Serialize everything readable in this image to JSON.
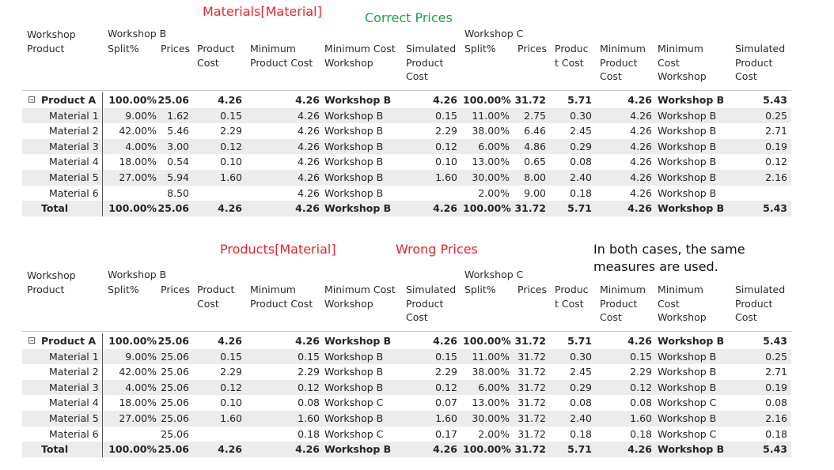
{
  "annotations": {
    "top_source": "Materials[Material]",
    "top_status": "Correct Prices",
    "bottom_source": "Products[Material]",
    "bottom_status": "Wrong Prices",
    "note_line1": "In both cases, the same",
    "note_line2": "measures are used."
  },
  "headers": {
    "row_header": [
      "Workshop",
      "Product"
    ],
    "workshop_b": "Workshop B",
    "workshop_c": "Workshop C",
    "split": "Split%",
    "prices": "Prices",
    "product_cost": [
      "Product",
      "Cost"
    ],
    "product_cost_c": [
      "Produc",
      "t Cost"
    ],
    "min_product_cost": [
      "Minimum",
      "Product Cost"
    ],
    "min_cost_workshop": [
      "Minimum Cost",
      "Workshop"
    ],
    "sim_product_cost": [
      "Simulated",
      "Product",
      "Cost"
    ],
    "min_product_cost_c": [
      "Minimum",
      "Product",
      "Cost"
    ],
    "min_cost_workshop_c": [
      "Minimum",
      "Cost",
      "Workshop"
    ],
    "sim_product_cost_c": [
      "Simulated",
      "Product",
      "Cost"
    ]
  },
  "top_table": {
    "rows": [
      {
        "label": "Product A",
        "split_b": "100.00%",
        "prices_b": "25.06",
        "pc_b": "4.26",
        "mpc_b": "4.26",
        "mcw_b": "Workshop B",
        "spc_b": "4.26",
        "split_c": "100.00%",
        "prices_c": "31.72",
        "pc_c": "5.71",
        "mpc_c": "4.26",
        "mcw_c": "Workshop B",
        "spc_c": "5.43"
      },
      {
        "label": "Material 1",
        "split_b": "9.00%",
        "prices_b": "1.62",
        "pc_b": "0.15",
        "mpc_b": "4.26",
        "mcw_b": "Workshop B",
        "spc_b": "0.15",
        "split_c": "11.00%",
        "prices_c": "2.75",
        "pc_c": "0.30",
        "mpc_c": "4.26",
        "mcw_c": "Workshop B",
        "spc_c": "0.25"
      },
      {
        "label": "Material 2",
        "split_b": "42.00%",
        "prices_b": "5.46",
        "pc_b": "2.29",
        "mpc_b": "4.26",
        "mcw_b": "Workshop B",
        "spc_b": "2.29",
        "split_c": "38.00%",
        "prices_c": "6.46",
        "pc_c": "2.45",
        "mpc_c": "4.26",
        "mcw_c": "Workshop B",
        "spc_c": "2.71"
      },
      {
        "label": "Material 3",
        "split_b": "4.00%",
        "prices_b": "3.00",
        "pc_b": "0.12",
        "mpc_b": "4.26",
        "mcw_b": "Workshop B",
        "spc_b": "0.12",
        "split_c": "6.00%",
        "prices_c": "4.86",
        "pc_c": "0.29",
        "mpc_c": "4.26",
        "mcw_c": "Workshop B",
        "spc_c": "0.19"
      },
      {
        "label": "Material 4",
        "split_b": "18.00%",
        "prices_b": "0.54",
        "pc_b": "0.10",
        "mpc_b": "4.26",
        "mcw_b": "Workshop B",
        "spc_b": "0.10",
        "split_c": "13.00%",
        "prices_c": "0.65",
        "pc_c": "0.08",
        "mpc_c": "4.26",
        "mcw_c": "Workshop B",
        "spc_c": "0.12"
      },
      {
        "label": "Material 5",
        "split_b": "27.00%",
        "prices_b": "5.94",
        "pc_b": "1.60",
        "mpc_b": "4.26",
        "mcw_b": "Workshop B",
        "spc_b": "1.60",
        "split_c": "30.00%",
        "prices_c": "8.00",
        "pc_c": "2.40",
        "mpc_c": "4.26",
        "mcw_c": "Workshop B",
        "spc_c": "2.16"
      },
      {
        "label": "Material 6",
        "split_b": "",
        "prices_b": "8.50",
        "pc_b": "",
        "mpc_b": "4.26",
        "mcw_b": "Workshop B",
        "spc_b": "",
        "split_c": "2.00%",
        "prices_c": "9.00",
        "pc_c": "0.18",
        "mpc_c": "4.26",
        "mcw_c": "Workshop B",
        "spc_c": ""
      },
      {
        "label": "Total",
        "split_b": "100.00%",
        "prices_b": "25.06",
        "pc_b": "4.26",
        "mpc_b": "4.26",
        "mcw_b": "Workshop B",
        "spc_b": "4.26",
        "split_c": "100.00%",
        "prices_c": "31.72",
        "pc_c": "5.71",
        "mpc_c": "4.26",
        "mcw_c": "Workshop B",
        "spc_c": "5.43"
      }
    ]
  },
  "bottom_table": {
    "rows": [
      {
        "label": "Product A",
        "split_b": "100.00%",
        "prices_b": "25.06",
        "pc_b": "4.26",
        "mpc_b": "4.26",
        "mcw_b": "Workshop B",
        "spc_b": "4.26",
        "split_c": "100.00%",
        "prices_c": "31.72",
        "pc_c": "5.71",
        "mpc_c": "4.26",
        "mcw_c": "Workshop B",
        "spc_c": "5.43"
      },
      {
        "label": "Material 1",
        "split_b": "9.00%",
        "prices_b": "25.06",
        "pc_b": "0.15",
        "mpc_b": "0.15",
        "mcw_b": "Workshop B",
        "spc_b": "0.15",
        "split_c": "11.00%",
        "prices_c": "31.72",
        "pc_c": "0.30",
        "mpc_c": "0.15",
        "mcw_c": "Workshop B",
        "spc_c": "0.25"
      },
      {
        "label": "Material 2",
        "split_b": "42.00%",
        "prices_b": "25.06",
        "pc_b": "2.29",
        "mpc_b": "2.29",
        "mcw_b": "Workshop B",
        "spc_b": "2.29",
        "split_c": "38.00%",
        "prices_c": "31.72",
        "pc_c": "2.45",
        "mpc_c": "2.29",
        "mcw_c": "Workshop B",
        "spc_c": "2.71"
      },
      {
        "label": "Material 3",
        "split_b": "4.00%",
        "prices_b": "25.06",
        "pc_b": "0.12",
        "mpc_b": "0.12",
        "mcw_b": "Workshop B",
        "spc_b": "0.12",
        "split_c": "6.00%",
        "prices_c": "31.72",
        "pc_c": "0.29",
        "mpc_c": "0.12",
        "mcw_c": "Workshop B",
        "spc_c": "0.19"
      },
      {
        "label": "Material 4",
        "split_b": "18.00%",
        "prices_b": "25.06",
        "pc_b": "0.10",
        "mpc_b": "0.08",
        "mcw_b": "Workshop C",
        "spc_b": "0.07",
        "split_c": "13.00%",
        "prices_c": "31.72",
        "pc_c": "0.08",
        "mpc_c": "0.08",
        "mcw_c": "Workshop C",
        "spc_c": "0.08"
      },
      {
        "label": "Material 5",
        "split_b": "27.00%",
        "prices_b": "25.06",
        "pc_b": "1.60",
        "mpc_b": "1.60",
        "mcw_b": "Workshop B",
        "spc_b": "1.60",
        "split_c": "30.00%",
        "prices_c": "31.72",
        "pc_c": "2.40",
        "mpc_c": "1.60",
        "mcw_c": "Workshop B",
        "spc_c": "2.16"
      },
      {
        "label": "Material 6",
        "split_b": "",
        "prices_b": "25.06",
        "pc_b": "",
        "mpc_b": "0.18",
        "mcw_b": "Workshop C",
        "spc_b": "0.17",
        "split_c": "2.00%",
        "prices_c": "31.72",
        "pc_c": "0.18",
        "mpc_c": "0.18",
        "mcw_c": "Workshop C",
        "spc_c": "0.18"
      },
      {
        "label": "Total",
        "split_b": "100.00%",
        "prices_b": "25.06",
        "pc_b": "4.26",
        "mpc_b": "4.26",
        "mcw_b": "Workshop B",
        "spc_b": "4.26",
        "split_c": "100.00%",
        "prices_c": "31.72",
        "pc_c": "5.71",
        "mpc_c": "4.26",
        "mcw_c": "Workshop B",
        "spc_c": "5.43"
      }
    ]
  }
}
